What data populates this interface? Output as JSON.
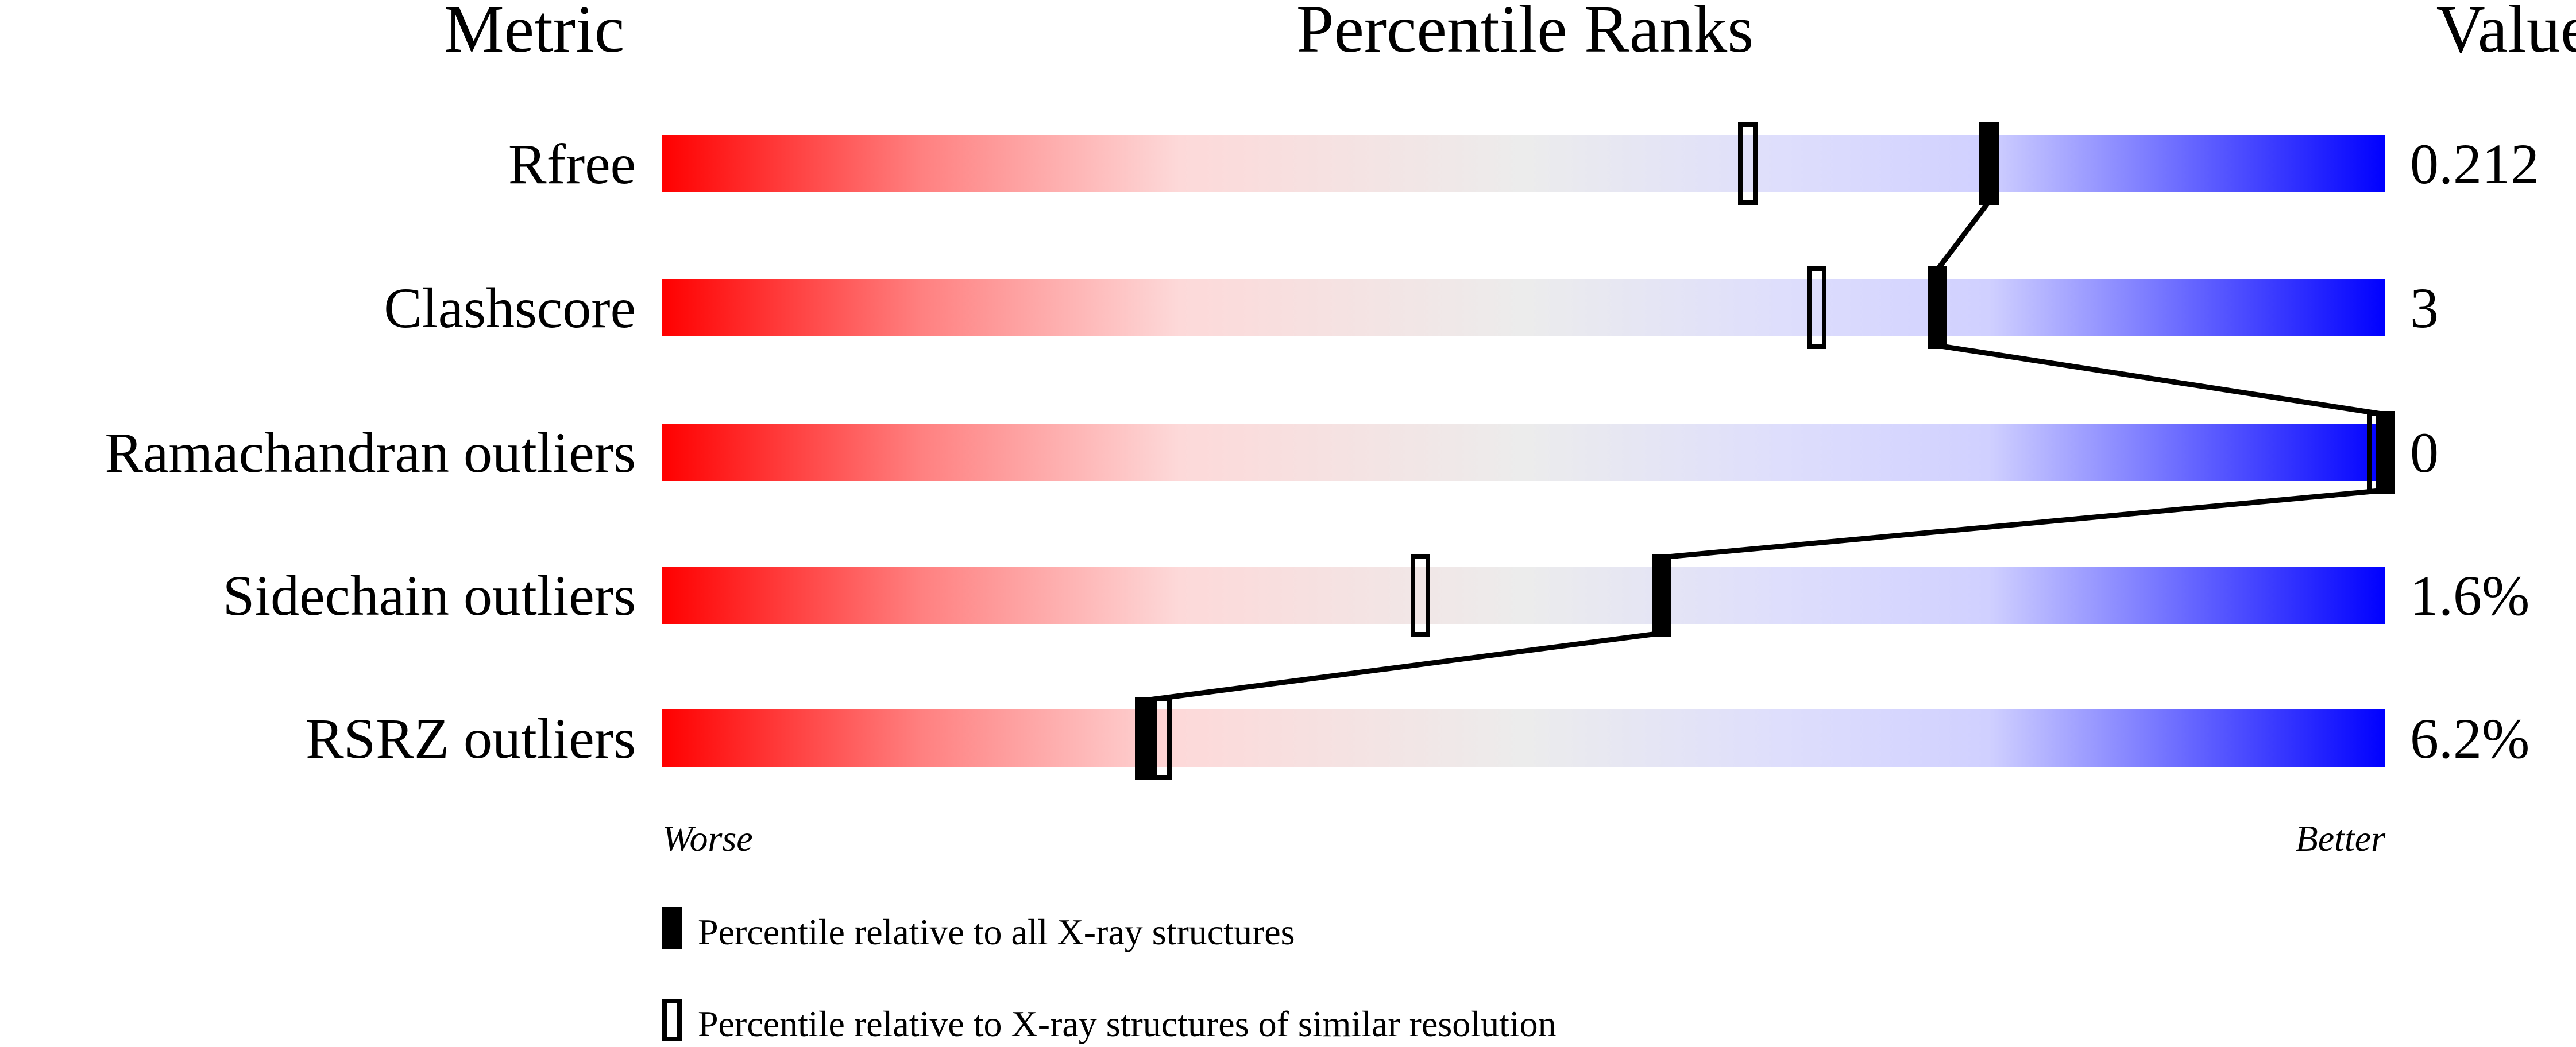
{
  "chart_data": {
    "type": "bar",
    "headers": {
      "metric": "Metric",
      "ranks": "Percentile Ranks",
      "value": "Value"
    },
    "xlim": [
      0,
      100
    ],
    "axis_low_label": "Worse",
    "axis_high_label": "Better",
    "gradient_colors": [
      "#ff0000",
      "#ff8080",
      "#fdd9d9",
      "#ececec",
      "#dedefc",
      "#d0d0ff",
      "#0000ff"
    ],
    "metrics": [
      {
        "name": "Rfree",
        "value": "0.212",
        "percentile_all": 77,
        "percentile_similar": 63
      },
      {
        "name": "Clashscore",
        "value": "3",
        "percentile_all": 74,
        "percentile_similar": 67
      },
      {
        "name": "Ramachandran outliers",
        "value": "0",
        "percentile_all": 100,
        "percentile_similar": 100
      },
      {
        "name": "Sidechain outliers",
        "value": "1.6%",
        "percentile_all": 58,
        "percentile_similar": 44
      },
      {
        "name": "RSRZ outliers",
        "value": "6.2%",
        "percentile_all": 28,
        "percentile_similar": 29
      }
    ],
    "legend": [
      {
        "marker": "filled",
        "label": "Percentile relative to all X-ray structures"
      },
      {
        "marker": "open",
        "label": "Percentile relative to X-ray structures of similar resolution"
      }
    ]
  }
}
